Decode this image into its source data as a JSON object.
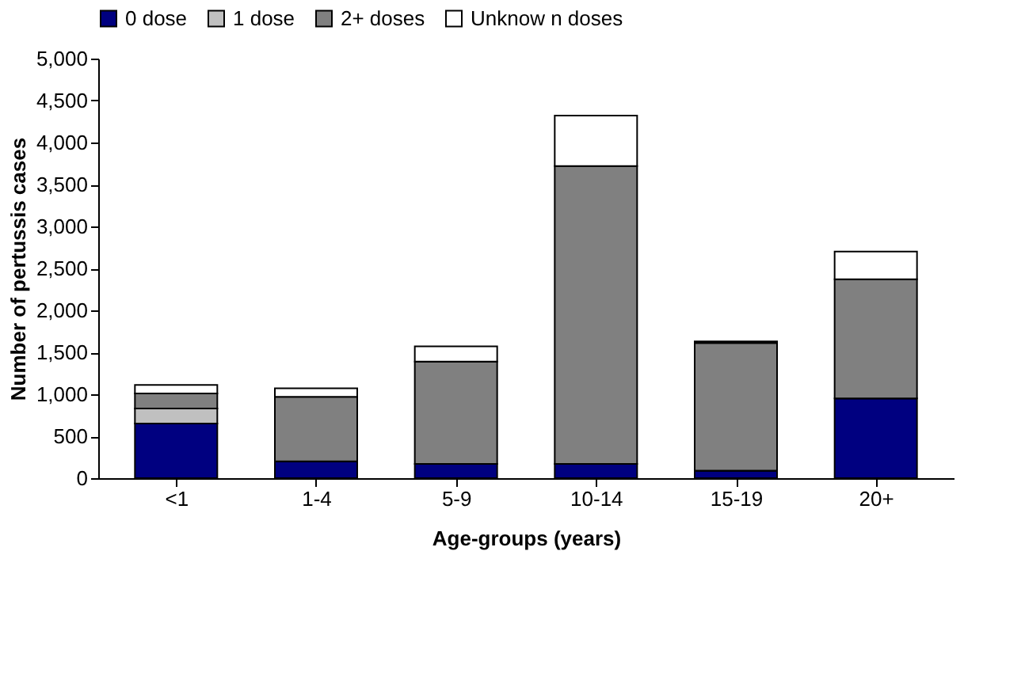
{
  "chart_data": {
    "type": "bar",
    "stacked": true,
    "xlabel": "Age-groups (years)",
    "ylabel": "Number of pertussis cases",
    "categories": [
      "<1",
      "1-4",
      "5-9",
      "10-14",
      "15-19",
      "20+"
    ],
    "series": [
      {
        "name": "0 dose",
        "color": "#000080",
        "values": [
          650,
          200,
          170,
          170,
          90,
          950
        ]
      },
      {
        "name": "1 dose",
        "color": "#c0c0c0",
        "values": [
          180,
          0,
          0,
          0,
          0,
          0
        ]
      },
      {
        "name": "2+ doses",
        "color": "#808080",
        "values": [
          180,
          770,
          1220,
          3550,
          1520,
          1420
        ]
      },
      {
        "name": "Unknow n doses",
        "color": "#ffffff",
        "values": [
          100,
          100,
          180,
          600,
          20,
          330
        ]
      }
    ],
    "ylim": [
      0,
      5000
    ],
    "yticks": [
      0,
      500,
      {
        "value": 1000,
        "label": "1,000"
      },
      {
        "value": 1500,
        "label": "1,500"
      },
      {
        "value": 2000,
        "label": "2,000"
      },
      {
        "value": 2500,
        "label": "2,500"
      },
      {
        "value": 3000,
        "label": "3,000"
      },
      {
        "value": 3500,
        "label": "3,500"
      },
      {
        "value": 4000,
        "label": "4,000"
      },
      {
        "value": 4500,
        "label": "4,500"
      },
      {
        "value": 5000,
        "label": "5,000"
      }
    ],
    "grid": false,
    "legend": "top"
  }
}
